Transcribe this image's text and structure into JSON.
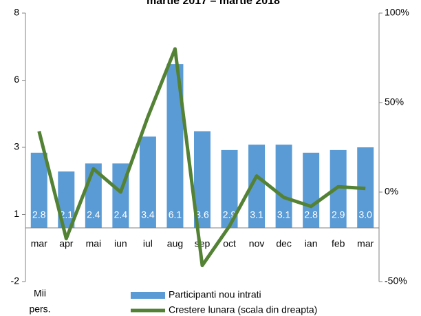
{
  "chart_data": {
    "type": "combo",
    "title": "martie 2017 – martie 2018",
    "ylabel_lines": [
      "Mii",
      "pers."
    ],
    "categories": [
      "mar",
      "apr",
      "mai",
      "iun",
      "iul",
      "aug",
      "sep",
      "oct",
      "nov",
      "dec",
      "ian",
      "feb",
      "mar"
    ],
    "series": [
      {
        "name": "Participanti nou intrati",
        "type": "bar",
        "color": "#5b9bd5",
        "values": [
          2.8,
          2.1,
          2.4,
          2.4,
          3.4,
          6.1,
          3.6,
          2.9,
          3.1,
          3.1,
          2.8,
          2.9,
          3.0
        ],
        "value_labels": [
          "2.8",
          "2.1",
          "2.4",
          "2.4",
          "3.4",
          "6.1",
          "3.6",
          "2.9",
          "3.1",
          "3.1",
          "2.8",
          "2.9",
          "3.0"
        ]
      },
      {
        "name": "Crestere lunara (scala din dreapta)",
        "type": "line",
        "color": "#548235",
        "axis": "y2",
        "values": [
          34,
          -26,
          13,
          0,
          42,
          80,
          -41,
          -19,
          9,
          -3,
          -8,
          3,
          2
        ]
      }
    ],
    "ylim": [
      -2,
      8
    ],
    "yticks": [
      -2,
      {
        "value": 0.5,
        "label": "1"
      },
      3,
      {
        "value": 5.5,
        "label": "6"
      },
      8
    ],
    "y2lim": [
      -50,
      100
    ],
    "y2ticks": [
      {
        "value": -50,
        "label": "-50%"
      },
      {
        "value": 0,
        "label": "0%"
      },
      {
        "value": 50,
        "label": "50%"
      },
      {
        "value": 100,
        "label": "100%"
      }
    ]
  }
}
